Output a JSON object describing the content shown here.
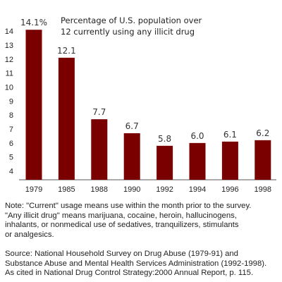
{
  "chart_data": {
    "type": "bar",
    "title_lines": [
      "Percentage of U.S. population over",
      "12 currently using any illicit drug"
    ],
    "categories": [
      "1979",
      "1985",
      "1988",
      "1990",
      "1992",
      "1994",
      "1996",
      "1998"
    ],
    "values": [
      14.1,
      12.1,
      7.7,
      6.7,
      5.8,
      6.0,
      6.1,
      6.2
    ],
    "value_labels": [
      "14.1%",
      "12.1",
      "7.7",
      "6.7",
      "5.8",
      "6.0",
      "6.1",
      "6.2"
    ],
    "y_ticks": [
      4,
      5,
      6,
      7,
      8,
      9,
      10,
      11,
      12,
      13,
      14
    ],
    "ylim": [
      3.5,
      14.4
    ],
    "bar_color": "#7a0000",
    "grid": false
  },
  "notes": {
    "note_lines": [
      "Note: \"Current\" usage means use within the month prior to the survey.",
      "\"Any illicit drug\" means marijuana, cocaine, heroin, hallucinogens,",
      "inhalants, or nonmedical use of sedatives, tranquilizers, stimulants",
      "or analgesics."
    ],
    "source_lines": [
      "Source: National Household Survey on Drug Abuse (1979-91) and",
      "Substance Abuse and Mental Health Services Administration (1992-1998).",
      "As cited in National Drug Control Strategy:2000 Annual Report, p. 115."
    ]
  }
}
